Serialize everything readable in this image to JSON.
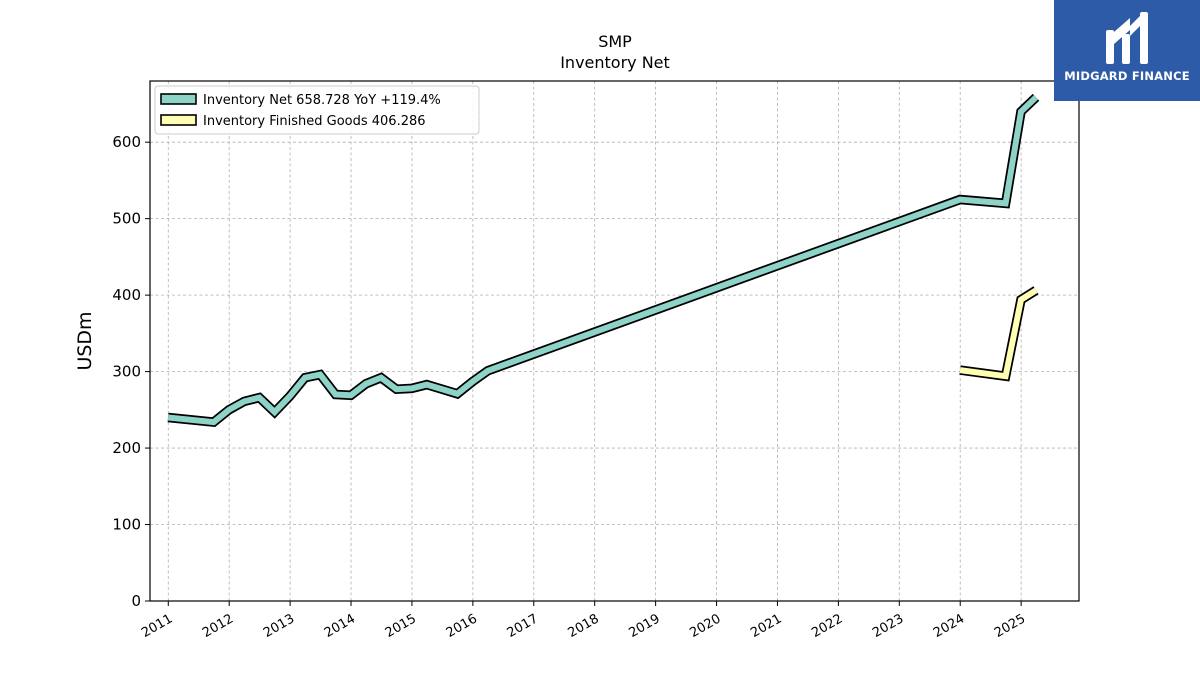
{
  "chart_data": {
    "type": "line",
    "title": "SMP",
    "subtitle": "Inventory Net",
    "ylabel": "USDm",
    "ylim": [
      0,
      680
    ],
    "xlim": [
      2010.7,
      2025.95
    ],
    "yticks": [
      0,
      100,
      200,
      300,
      400,
      500,
      600
    ],
    "xticks": [
      "2011",
      "2012",
      "2013",
      "2014",
      "2015",
      "2016",
      "2017",
      "2018",
      "2019",
      "2020",
      "2021",
      "2022",
      "2023",
      "2024",
      "2025"
    ],
    "grid": true,
    "legend_position": "top-left",
    "series": [
      {
        "name": "Inventory Net  658.728 YoY +119.4%",
        "color": "#8dd3c7",
        "points": [
          [
            "2010-12-31",
            240
          ],
          [
            "2011-09-30",
            234
          ],
          [
            "2011-12-31",
            250
          ],
          [
            "2012-03-31",
            261
          ],
          [
            "2012-06-30",
            266
          ],
          [
            "2012-09-30",
            247
          ],
          [
            "2012-12-31",
            268
          ],
          [
            "2013-03-31",
            292
          ],
          [
            "2013-06-30",
            296
          ],
          [
            "2013-09-30",
            270
          ],
          [
            "2013-12-31",
            269
          ],
          [
            "2014-03-31",
            284
          ],
          [
            "2014-06-30",
            292
          ],
          [
            "2014-09-30",
            277
          ],
          [
            "2014-12-31",
            278
          ],
          [
            "2015-03-31",
            283
          ],
          [
            "2015-09-30",
            271
          ],
          [
            "2015-12-31",
            287
          ],
          [
            "2016-03-31",
            301
          ],
          [
            "2023-12-31",
            525
          ],
          [
            "2024-09-30",
            520
          ],
          [
            "2024-12-31",
            640
          ],
          [
            "2025-03-31",
            658.728
          ]
        ]
      },
      {
        "name": "Inventory Finished Goods  406.286",
        "color": "#ffffb3",
        "points": [
          [
            "2023-12-31",
            302
          ],
          [
            "2024-09-30",
            294
          ],
          [
            "2024-12-31",
            394
          ],
          [
            "2025-03-31",
            406.286
          ]
        ]
      }
    ]
  },
  "logo": {
    "text": "MIDGARD FINANCE",
    "icon": "midgard-logo-icon",
    "background": "#2d5ba8"
  }
}
